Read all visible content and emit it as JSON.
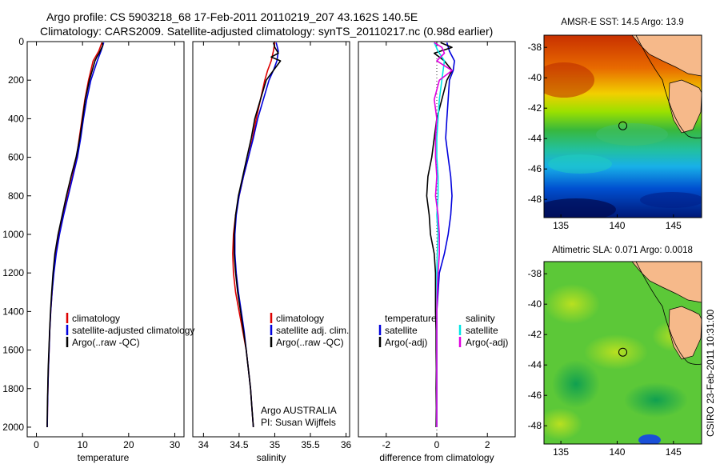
{
  "header": {
    "line1": "Argo profile: CS 5903218_68 17-Feb-2011 20110219_207 43.162S 140.5E",
    "line2": "Climatology: CARS2009. Satellite-adjusted climatology: synTS_20110217.nc (0.98d earlier)"
  },
  "colors": {
    "climatology": "#dd0000",
    "satellite": "#0000dd",
    "argo": "#000000",
    "cyan": "#00e5e5",
    "magenta": "#e000e0"
  },
  "chart_data": [
    {
      "type": "line",
      "xlabel": "temperature",
      "xlim": [
        -2,
        32
      ],
      "ylim": [
        0,
        2050
      ],
      "y_reversed": true,
      "xticks": [
        0,
        10,
        20,
        30
      ],
      "yticks": [
        0,
        200,
        400,
        600,
        800,
        1000,
        1200,
        1400,
        1600,
        1800,
        2000
      ],
      "legend": [
        "climatology",
        "satellite-adjusted climatology",
        "Argo(..raw -QC)"
      ],
      "series": [
        {
          "name": "climatology",
          "color": "#dd0000",
          "depth": [
            5,
            50,
            100,
            200,
            300,
            400,
            500,
            600,
            700,
            800,
            900,
            1000,
            1100,
            1200,
            1300,
            1400,
            1500,
            1600,
            1700,
            1800,
            1900,
            2000
          ],
          "values": [
            14.2,
            13.5,
            12.3,
            11.3,
            10.5,
            9.9,
            9.3,
            8.7,
            7.8,
            6.8,
            5.8,
            4.9,
            4.2,
            3.7,
            3.4,
            3.1,
            2.9,
            2.75,
            2.6,
            2.5,
            2.4,
            2.35
          ]
        },
        {
          "name": "satellite",
          "color": "#0000dd",
          "depth": [
            5,
            50,
            100,
            200,
            300,
            400,
            500,
            600,
            700,
            800,
            900,
            1000,
            1100,
            1200,
            1300,
            1400,
            1500,
            1600,
            1700,
            1800,
            1900,
            2000
          ],
          "values": [
            14.6,
            14.0,
            13.2,
            11.8,
            10.9,
            10.2,
            9.6,
            8.9,
            7.9,
            6.9,
            5.9,
            5.0,
            4.3,
            3.8,
            3.4,
            3.1,
            2.9,
            2.75,
            2.6,
            2.5,
            2.4,
            2.35
          ]
        },
        {
          "name": "Argo",
          "color": "#000000",
          "depth": [
            5,
            20,
            40,
            60,
            80,
            100,
            150,
            200,
            300,
            400,
            500,
            600,
            700,
            800,
            900,
            1000,
            1100,
            1200,
            1300,
            1400,
            1500,
            1600,
            1700,
            1800,
            1900,
            2000
          ],
          "values": [
            14.3,
            14.4,
            14.0,
            13.6,
            13.1,
            12.7,
            12.1,
            11.5,
            10.6,
            10.0,
            9.4,
            8.6,
            7.5,
            6.5,
            5.6,
            4.7,
            4.0,
            3.6,
            3.3,
            3.05,
            2.85,
            2.7,
            2.55,
            2.45,
            2.38,
            2.32
          ]
        }
      ]
    },
    {
      "type": "line",
      "xlabel": "salinity",
      "xlim": [
        33.85,
        36.05
      ],
      "ylim": [
        0,
        2050
      ],
      "y_reversed": true,
      "xticks": [
        34,
        34.5,
        35,
        35.5,
        36
      ],
      "legend": [
        "climatology",
        "satellite adj. clim.",
        "Argo(..raw -QC)"
      ],
      "annotation": [
        "Argo AUSTRALIA",
        "PI: Susan Wijffels"
      ],
      "series": [
        {
          "name": "climatology",
          "color": "#dd0000",
          "depth": [
            5,
            50,
            100,
            150,
            200,
            300,
            400,
            500,
            600,
            700,
            800,
            900,
            1000,
            1100,
            1200,
            1300,
            1400,
            1500,
            1600,
            1700,
            1800,
            1900,
            2000
          ],
          "values": [
            35.0,
            34.98,
            34.95,
            34.9,
            34.86,
            34.8,
            34.74,
            34.69,
            34.63,
            34.56,
            34.5,
            34.45,
            34.42,
            34.41,
            34.42,
            34.45,
            34.5,
            34.55,
            34.6,
            34.63,
            34.66,
            34.68,
            34.7
          ]
        },
        {
          "name": "satellite",
          "color": "#0000dd",
          "depth": [
            5,
            50,
            100,
            150,
            200,
            300,
            400,
            500,
            600,
            700,
            800,
            900,
            1000,
            1100,
            1200,
            1300,
            1400,
            1500,
            1600,
            1700,
            1800,
            1900,
            2000
          ],
          "values": [
            35.02,
            35.05,
            35.03,
            34.98,
            34.92,
            34.84,
            34.76,
            34.7,
            34.63,
            34.56,
            34.5,
            34.46,
            34.44,
            34.44,
            34.46,
            34.49,
            34.53,
            34.57,
            34.6,
            34.63,
            34.66,
            34.68,
            34.7
          ]
        },
        {
          "name": "Argo",
          "color": "#000000",
          "depth": [
            5,
            30,
            60,
            80,
            100,
            150,
            200,
            300,
            400,
            500,
            600,
            700,
            800,
            900,
            1000,
            1100,
            1200,
            1300,
            1400,
            1500,
            1600,
            1700,
            1800,
            1900,
            2000
          ],
          "values": [
            34.98,
            35.0,
            35.05,
            34.95,
            35.08,
            34.98,
            34.88,
            34.8,
            34.72,
            34.67,
            34.61,
            34.55,
            34.49,
            34.45,
            34.43,
            34.43,
            34.45,
            34.48,
            34.52,
            34.56,
            34.6,
            34.63,
            34.66,
            34.68,
            34.7
          ]
        }
      ]
    },
    {
      "type": "line",
      "xlabel": "difference from climatology",
      "xlim": [
        -3.1,
        3.1
      ],
      "ylim": [
        0,
        2050
      ],
      "y_reversed": true,
      "xticks": [
        -2,
        0,
        2
      ],
      "legend_temperature_title": "temperature",
      "legend_salinity_title": "salinity",
      "legend_temperature": [
        "satellite",
        "Argo(-adj)"
      ],
      "legend_salinity": [
        "satellite",
        "Argo(-adj)"
      ],
      "series": [
        {
          "name": "temp satellite",
          "color": "#0000dd",
          "depth": [
            5,
            50,
            100,
            150,
            200,
            300,
            400,
            500,
            600,
            700,
            800,
            900,
            1000,
            1100,
            1200,
            1300,
            1400,
            1500,
            1600,
            1700,
            1800,
            1900,
            2000
          ],
          "values": [
            0.4,
            0.5,
            0.7,
            0.65,
            0.5,
            0.45,
            0.4,
            0.35,
            0.45,
            0.55,
            0.6,
            0.55,
            0.45,
            0.3,
            0.1,
            0.05,
            0.0,
            0.0,
            0.0,
            0.0,
            0.0,
            0.0,
            0.0
          ]
        },
        {
          "name": "temp Argo",
          "color": "#000000",
          "depth": [
            5,
            30,
            60,
            100,
            150,
            200,
            300,
            400,
            500,
            600,
            700,
            800,
            900,
            1000,
            1100,
            1200,
            1300,
            1400,
            1500,
            1600,
            1700,
            1800,
            1900,
            2000
          ],
          "values": [
            0.15,
            0.6,
            -0.1,
            0.3,
            0.6,
            0.4,
            0.2,
            0.0,
            -0.1,
            -0.2,
            -0.35,
            -0.4,
            -0.3,
            -0.25,
            -0.1,
            -0.05,
            -0.05,
            -0.05,
            -0.03,
            -0.03,
            -0.02,
            -0.03,
            -0.02,
            -0.03
          ]
        },
        {
          "name": "sal satellite",
          "color": "#00e5e5",
          "depth": [
            5,
            50,
            100,
            150,
            200,
            300,
            400,
            500,
            600,
            700,
            800,
            900,
            1000,
            1100,
            1200,
            1300,
            1400,
            1500,
            1600,
            1700,
            1800,
            1900,
            2000
          ],
          "values": [
            -0.1,
            0.05,
            0.3,
            0.25,
            0.2,
            0.1,
            0.05,
            0.0,
            0.0,
            0.05,
            0.05,
            0.0,
            0.05,
            0.02,
            0.0,
            0.0,
            0.0,
            0.0,
            0.0,
            0.0,
            0.0,
            0.0,
            0.0
          ]
        },
        {
          "name": "sal Argo",
          "color": "#e000e0",
          "depth": [
            5,
            30,
            60,
            100,
            150,
            200,
            300,
            400,
            500,
            600,
            700,
            800,
            900,
            1000,
            1100,
            1200,
            1300,
            1400,
            1500,
            1600,
            1700,
            1800,
            1900,
            2000
          ],
          "values": [
            -0.1,
            0.2,
            0.3,
            0.0,
            0.6,
            0.1,
            -0.1,
            0.0,
            -0.05,
            -0.05,
            0.0,
            -0.05,
            0.05,
            0.1,
            0.1,
            0.05,
            0.02,
            0.0,
            0.0,
            0.0,
            0.0,
            0.0,
            0.0,
            0.0
          ]
        }
      ]
    },
    {
      "type": "heatmap",
      "title": "AMSR-E SST: 14.5 Argo: 13.9",
      "xlim": [
        133.5,
        147.5
      ],
      "ylim": [
        -49.2,
        -37.2
      ],
      "xticks": [
        135,
        140,
        145
      ],
      "yticks": [
        -38,
        -40,
        -42,
        -44,
        -46,
        -48
      ],
      "marker": {
        "lon": 140.5,
        "lat": -43.16
      }
    },
    {
      "type": "heatmap",
      "title": "Altimetric SLA: 0.071 Argo: 0.0018",
      "xlim": [
        133.5,
        147.5
      ],
      "ylim": [
        -49.2,
        -37.2
      ],
      "xticks": [
        135,
        140,
        145
      ],
      "yticks": [
        -38,
        -40,
        -42,
        -44,
        -46,
        -48
      ],
      "marker": {
        "lon": 140.5,
        "lat": -43.16
      }
    }
  ],
  "credit": "CSIRO 23-Feb-2011 10:31:00"
}
